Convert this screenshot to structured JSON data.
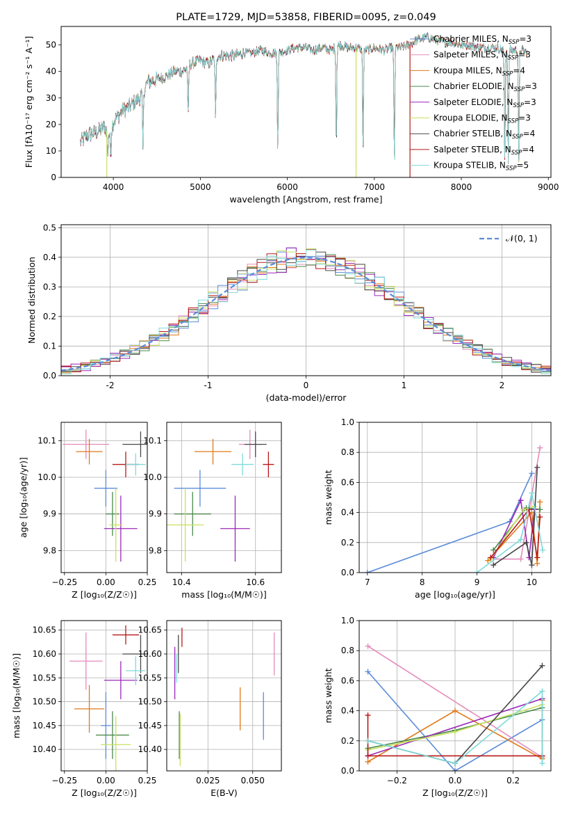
{
  "colors": {
    "Chabrier MILES": "#5b8bd9",
    "Salpeter MILES": "#e48bbb",
    "Kroupa MILES": "#e07a1a",
    "Chabrier ELODIE": "#4a8a4a",
    "Salpeter ELODIE": "#9b27b8",
    "Kroupa ELODIE": "#c8e060",
    "Chabrier STELIB": "#484848",
    "Salpeter STELIB": "#b81818",
    "Kroupa STELIB": "#7edada"
  },
  "chart_data": [
    {
      "id": "spectrum",
      "type": "line",
      "title": "PLATE=1729, MJD=53858, FIBERID=0095, z=0.049",
      "xlabel": "wavelength [Angstrom, rest frame]",
      "ylabel": "Flux [fλ10⁻¹⁷ erg cm⁻² s⁻¹ A⁻¹]",
      "xlim": [
        3400,
        9030
      ],
      "ylim": [
        0,
        57
      ],
      "xticks": [
        4000,
        5000,
        6000,
        7000,
        8000,
        9000
      ],
      "yticks": [
        0,
        10,
        20,
        30,
        40,
        50
      ],
      "legend_position": "upper-right",
      "legend": [
        {
          "model": "Chabrier MILES",
          "label": "Chabrier MILES, N",
          "sub": "SSP",
          "suffix": "=3"
        },
        {
          "model": "Salpeter MILES",
          "label": "Salpeter MILES, N",
          "sub": "SSP",
          "suffix": "=3"
        },
        {
          "model": "Kroupa MILES",
          "label": "Kroupa MILES, N",
          "sub": "SSP",
          "suffix": "=4"
        },
        {
          "model": "Chabrier ELODIE",
          "label": "Chabrier ELODIE, N",
          "sub": "SSP",
          "suffix": "=3"
        },
        {
          "model": "Salpeter ELODIE",
          "label": "Salpeter ELODIE, N",
          "sub": "SSP",
          "suffix": "=3"
        },
        {
          "model": "Kroupa ELODIE",
          "label": "Kroupa ELODIE, N",
          "sub": "SSP",
          "suffix": "=3"
        },
        {
          "model": "Chabrier STELIB",
          "label": "Chabrier STELIB, N",
          "sub": "SSP",
          "suffix": "=4"
        },
        {
          "model": "Salpeter STELIB",
          "label": "Salpeter STELIB, N",
          "sub": "SSP",
          "suffix": "=4"
        },
        {
          "model": "Kroupa STELIB",
          "label": "Kroupa STELIB, N",
          "sub": "SSP",
          "suffix": "=5"
        }
      ],
      "continuum": [
        [
          3620,
          13
        ],
        [
          3700,
          16
        ],
        [
          3800,
          17
        ],
        [
          3900,
          19
        ],
        [
          3960,
          16
        ],
        [
          4000,
          21
        ],
        [
          4100,
          25
        ],
        [
          4200,
          27
        ],
        [
          4300,
          30
        ],
        [
          4400,
          36
        ],
        [
          4500,
          37
        ],
        [
          4600,
          38
        ],
        [
          4700,
          40
        ],
        [
          4800,
          40
        ],
        [
          4900,
          43
        ],
        [
          5000,
          44
        ],
        [
          5100,
          43
        ],
        [
          5200,
          46
        ],
        [
          5300,
          46
        ],
        [
          5400,
          46
        ],
        [
          5500,
          47
        ],
        [
          5600,
          47
        ],
        [
          5700,
          48
        ],
        [
          5800,
          47
        ],
        [
          5900,
          47
        ],
        [
          6000,
          48
        ],
        [
          6100,
          49
        ],
        [
          6200,
          49
        ],
        [
          6300,
          48
        ],
        [
          6400,
          49
        ],
        [
          6500,
          48
        ],
        [
          6600,
          50
        ],
        [
          6700,
          49
        ],
        [
          6800,
          49
        ],
        [
          6900,
          48
        ],
        [
          7000,
          49
        ],
        [
          7100,
          48
        ],
        [
          7200,
          49
        ],
        [
          7300,
          49
        ],
        [
          7400,
          50
        ],
        [
          7500,
          52
        ],
        [
          7600,
          53
        ],
        [
          7700,
          52
        ],
        [
          7800,
          51
        ],
        [
          7900,
          51
        ],
        [
          8000,
          50
        ],
        [
          8100,
          50
        ],
        [
          8200,
          49
        ],
        [
          8300,
          49
        ],
        [
          8400,
          49
        ],
        [
          8500,
          48
        ],
        [
          8600,
          48
        ],
        [
          8700,
          48
        ],
        [
          8760,
          47
        ]
      ],
      "dips": [
        [
          4340,
          22
        ],
        [
          4860,
          20
        ],
        [
          5175,
          24
        ],
        [
          5890,
          37
        ],
        [
          6563,
          39
        ],
        [
          6870,
          40
        ],
        [
          7230,
          45
        ],
        [
          8500,
          44
        ],
        [
          8540,
          43
        ],
        [
          8660,
          43
        ],
        [
          3970,
          9
        ],
        [
          3934,
          10
        ]
      ],
      "drops": [
        {
          "model": "Kroupa ELODIE",
          "x": 3925
        },
        {
          "model": "Kroupa ELODIE",
          "x": 6790
        },
        {
          "model": "Salpeter STELIB",
          "x": 7410
        }
      ]
    },
    {
      "id": "residuals",
      "type": "histogram",
      "xlabel": "(data-model)/error",
      "ylabel": "Normed distribution",
      "xlim": [
        -2.5,
        2.5
      ],
      "ylim": [
        0,
        0.51
      ],
      "xticks": [
        -2,
        -1,
        0,
        1,
        2
      ],
      "yticks": [
        0.0,
        0.1,
        0.2,
        0.3,
        0.4,
        0.5
      ],
      "bin_width": 0.1,
      "bin_start": -2.5,
      "legend": [
        {
          "label": "𝒩(0, 1)",
          "style": "dashed",
          "color": "#5b8bd9"
        }
      ],
      "legend_position": "upper-right"
    },
    {
      "id": "age-vs-Z",
      "type": "scatter",
      "xlabel": "Z [log₁₀(Z/Z☉)]",
      "ylabel": "age  [log₁₀(age/yr)]",
      "xlim": [
        -0.27,
        0.25
      ],
      "ylim": [
        9.74,
        10.15
      ],
      "xticks": [
        -0.25,
        0.0,
        0.25
      ],
      "xticklabels": [
        "−0.25",
        "0.00",
        "0.25"
      ],
      "yticks": [
        9.8,
        9.9,
        10.0,
        10.1
      ],
      "points": [
        {
          "model": "Chabrier MILES",
          "x": 0.0,
          "y": 9.97,
          "xerr": 0.07,
          "yerr": 0.05
        },
        {
          "model": "Salpeter MILES",
          "x": -0.12,
          "y": 10.09,
          "xerr": 0.14,
          "yerr": 0.04
        },
        {
          "model": "Kroupa MILES",
          "x": -0.1,
          "y": 10.07,
          "xerr": 0.08,
          "yerr": 0.035
        },
        {
          "model": "Chabrier ELODIE",
          "x": 0.04,
          "y": 9.9,
          "xerr": 0.04,
          "yerr": 0.06
        },
        {
          "model": "Salpeter ELODIE",
          "x": 0.09,
          "y": 9.86,
          "xerr": 0.1,
          "yerr": 0.09
        },
        {
          "model": "Kroupa ELODIE",
          "x": 0.06,
          "y": 9.87,
          "xerr": 0.04,
          "yerr": 0.1
        },
        {
          "model": "Chabrier STELIB",
          "x": 0.21,
          "y": 10.09,
          "xerr": 0.11,
          "yerr": 0.035
        },
        {
          "model": "Salpeter STELIB",
          "x": 0.12,
          "y": 10.035,
          "xerr": 0.08,
          "yerr": 0.035
        },
        {
          "model": "Kroupa STELIB",
          "x": 0.18,
          "y": 10.035,
          "xerr": 0.06,
          "yerr": 0.03
        }
      ]
    },
    {
      "id": "age-vs-mass",
      "type": "scatter",
      "xlabel": "mass [log₁₀(M/M☉)]",
      "ylabel": "",
      "xlim": [
        10.36,
        10.67
      ],
      "ylim": [
        9.74,
        10.15
      ],
      "xticks": [
        10.4,
        10.6
      ],
      "xticklabels": [
        "10.4",
        "10.6"
      ],
      "yticks": [
        9.8,
        9.9,
        10.0,
        10.1
      ],
      "points": [
        {
          "model": "Chabrier MILES",
          "x": 10.45,
          "y": 9.97,
          "xerr": 0.07,
          "yerr": 0.05
        },
        {
          "model": "Salpeter MILES",
          "x": 10.585,
          "y": 10.09,
          "xerr": 0.03,
          "yerr": 0.04
        },
        {
          "model": "Kroupa MILES",
          "x": 10.485,
          "y": 10.07,
          "xerr": 0.05,
          "yerr": 0.035
        },
        {
          "model": "Chabrier ELODIE",
          "x": 10.43,
          "y": 9.9,
          "xerr": 0.05,
          "yerr": 0.06
        },
        {
          "model": "Salpeter ELODIE",
          "x": 10.545,
          "y": 9.86,
          "xerr": 0.04,
          "yerr": 0.09
        },
        {
          "model": "Kroupa ELODIE",
          "x": 10.41,
          "y": 9.87,
          "xerr": 0.05,
          "yerr": 0.1
        },
        {
          "model": "Chabrier STELIB",
          "x": 10.6,
          "y": 10.09,
          "xerr": 0.03,
          "yerr": 0.035
        },
        {
          "model": "Salpeter STELIB",
          "x": 10.635,
          "y": 10.035,
          "xerr": 0.015,
          "yerr": 0.035
        },
        {
          "model": "Kroupa STELIB",
          "x": 10.565,
          "y": 10.035,
          "xerr": 0.03,
          "yerr": 0.03
        }
      ]
    },
    {
      "id": "mass-weight-vs-age",
      "type": "line",
      "xlabel": "age  [log₁₀(age/yr)]",
      "ylabel": "mass weight",
      "xlim": [
        6.85,
        10.35
      ],
      "ylim": [
        0,
        1.0
      ],
      "xticks": [
        7,
        8,
        9,
        10
      ],
      "yticks": [
        0.0,
        0.2,
        0.4,
        0.6,
        0.8,
        1.0
      ],
      "series": [
        {
          "model": "Chabrier MILES",
          "x": [
            7.0,
            9.6,
            10.0
          ],
          "y": [
            0.0,
            0.34,
            0.66
          ]
        },
        {
          "model": "Salpeter MILES",
          "x": [
            9.3,
            9.8,
            10.15
          ],
          "y": [
            0.09,
            0.09,
            0.83
          ]
        },
        {
          "model": "Kroupa MILES",
          "x": [
            9.2,
            10.0,
            10.1,
            10.15
          ],
          "y": [
            0.08,
            0.4,
            0.06,
            0.47
          ]
        },
        {
          "model": "Chabrier ELODIE",
          "x": [
            9.3,
            9.9,
            10.15
          ],
          "y": [
            0.15,
            0.43,
            0.42
          ]
        },
        {
          "model": "Salpeter ELODIE",
          "x": [
            9.3,
            9.8,
            9.95,
            10.05
          ],
          "y": [
            0.1,
            0.48,
            0.1,
            0.42
          ]
        },
        {
          "model": "Kroupa ELODIE",
          "x": [
            9.25,
            9.85,
            10.05
          ],
          "y": [
            0.09,
            0.42,
            0.44
          ]
        },
        {
          "model": "Chabrier STELIB",
          "x": [
            9.3,
            9.9,
            10.0,
            10.1
          ],
          "y": [
            0.05,
            0.2,
            0.05,
            0.7
          ]
        },
        {
          "model": "Salpeter STELIB",
          "x": [
            9.25,
            9.95,
            10.1,
            10.15
          ],
          "y": [
            0.1,
            0.42,
            0.1,
            0.37
          ]
        },
        {
          "model": "Kroupa STELIB",
          "x": [
            9.0,
            9.8,
            10.0,
            10.2
          ],
          "y": [
            0.0,
            0.22,
            0.53,
            0.15
          ]
        }
      ]
    },
    {
      "id": "mass-vs-Z",
      "type": "scatter",
      "xlabel": "Z [log₁₀(Z/Z☉)]",
      "ylabel": "mass [log₁₀(M/M☉)]",
      "xlim": [
        -0.27,
        0.25
      ],
      "ylim": [
        10.355,
        10.67
      ],
      "xticks": [
        -0.25,
        0.0,
        0.25
      ],
      "xticklabels": [
        "−0.25",
        "0.00",
        "0.25"
      ],
      "yticks": [
        10.4,
        10.45,
        10.5,
        10.55,
        10.6,
        10.65
      ],
      "points": [
        {
          "model": "Chabrier MILES",
          "x": 0.0,
          "y": 10.45,
          "xerr": 0.03,
          "yerr": 0.07
        },
        {
          "model": "Salpeter MILES",
          "x": -0.12,
          "y": 10.585,
          "xerr": 0.1,
          "yerr": 0.06
        },
        {
          "model": "Kroupa MILES",
          "x": -0.1,
          "y": 10.485,
          "xerr": 0.09,
          "yerr": 0.05
        },
        {
          "model": "Chabrier ELODIE",
          "x": 0.04,
          "y": 10.43,
          "xerr": 0.1,
          "yerr": 0.05
        },
        {
          "model": "Salpeter ELODIE",
          "x": 0.09,
          "y": 10.545,
          "xerr": 0.1,
          "yerr": 0.04
        },
        {
          "model": "Kroupa ELODIE",
          "x": 0.06,
          "y": 10.41,
          "xerr": 0.09,
          "yerr": 0.06
        },
        {
          "model": "Chabrier STELIB",
          "x": 0.21,
          "y": 10.6,
          "xerr": 0.11,
          "yerr": 0.04
        },
        {
          "model": "Salpeter STELIB",
          "x": 0.12,
          "y": 10.64,
          "xerr": 0.08,
          "yerr": 0.02
        },
        {
          "model": "Kroupa STELIB",
          "x": 0.18,
          "y": 10.565,
          "xerr": 0.06,
          "yerr": 0.03
        }
      ]
    },
    {
      "id": "mass-vs-ebv",
      "type": "scatter",
      "xlabel": "E(B-V)",
      "ylabel": "",
      "xlim": [
        0.002,
        0.066
      ],
      "ylim": [
        10.355,
        10.67
      ],
      "xticks": [
        0.025,
        0.05
      ],
      "xticklabels": [
        "0.025",
        "0.050"
      ],
      "yticks": [
        10.4,
        10.45,
        10.5,
        10.55,
        10.6,
        10.65
      ],
      "points": [
        {
          "model": "Chabrier MILES",
          "x": 0.056,
          "y": 10.47,
          "xerr": 0.0,
          "yerr": 0.05
        },
        {
          "model": "Salpeter MILES",
          "x": 0.062,
          "y": 10.6,
          "xerr": 0.0,
          "yerr": 0.045
        },
        {
          "model": "Kroupa MILES",
          "x": 0.043,
          "y": 10.485,
          "xerr": 0.0,
          "yerr": 0.045
        },
        {
          "model": "Chabrier ELODIE",
          "x": 0.009,
          "y": 10.43,
          "xerr": 0.0,
          "yerr": 0.05
        },
        {
          "model": "Salpeter ELODIE",
          "x": 0.0065,
          "y": 10.56,
          "xerr": 0.0,
          "yerr": 0.055
        },
        {
          "model": "Kroupa ELODIE",
          "x": 0.0095,
          "y": 10.42,
          "xerr": 0.0,
          "yerr": 0.055
        },
        {
          "model": "Chabrier STELIB",
          "x": 0.0085,
          "y": 10.6,
          "xerr": 0.0,
          "yerr": 0.04
        },
        {
          "model": "Salpeter STELIB",
          "x": 0.0105,
          "y": 10.635,
          "xerr": 0.0,
          "yerr": 0.02
        },
        {
          "model": "Kroupa STELIB",
          "x": 0.0075,
          "y": 10.57,
          "xerr": 0.0,
          "yerr": 0.03
        }
      ]
    },
    {
      "id": "mass-weight-vs-Z",
      "type": "line",
      "xlabel": "Z [log₁₀(Z/Z☉)]",
      "ylabel": "mass weight",
      "xlim": [
        -0.33,
        0.33
      ],
      "ylim": [
        0,
        1.0
      ],
      "xticks": [
        -0.2,
        0.0,
        0.2
      ],
      "xticklabels": [
        "−0.2",
        "0.0",
        "0.2"
      ],
      "yticks": [
        0.0,
        0.2,
        0.4,
        0.6,
        0.8,
        1.0
      ],
      "series": [
        {
          "model": "Chabrier MILES",
          "x": [
            -0.3,
            0.0,
            0.3
          ],
          "y": [
            0.66,
            0.0,
            0.34
          ]
        },
        {
          "model": "Salpeter MILES",
          "x": [
            -0.3,
            0.3
          ],
          "y": [
            0.83,
            0.09
          ]
        },
        {
          "model": "Kroupa MILES",
          "x": [
            -0.3,
            0.0,
            0.3,
            0.3
          ],
          "y": [
            0.06,
            0.4,
            0.08,
            0.47
          ]
        },
        {
          "model": "Chabrier ELODIE",
          "x": [
            -0.3,
            0.0,
            0.3
          ],
          "y": [
            0.15,
            0.27,
            0.42
          ]
        },
        {
          "model": "Salpeter ELODIE",
          "x": [
            -0.3,
            0.3
          ],
          "y": [
            0.1,
            0.48
          ]
        },
        {
          "model": "Kroupa ELODIE",
          "x": [
            -0.3,
            0.0,
            0.3
          ],
          "y": [
            0.14,
            0.26,
            0.44
          ]
        },
        {
          "model": "Chabrier STELIB",
          "x": [
            -0.3,
            0.0,
            0.3
          ],
          "y": [
            0.2,
            0.05,
            0.7
          ]
        },
        {
          "model": "Salpeter STELIB",
          "x": [
            -0.3,
            -0.3,
            0.3,
            0.3
          ],
          "y": [
            0.37,
            0.1,
            0.1,
            0.1
          ]
        },
        {
          "model": "Kroupa STELIB",
          "x": [
            -0.3,
            0.0,
            0.3,
            0.3
          ],
          "y": [
            0.2,
            0.05,
            0.53,
            0.05
          ]
        }
      ]
    }
  ]
}
